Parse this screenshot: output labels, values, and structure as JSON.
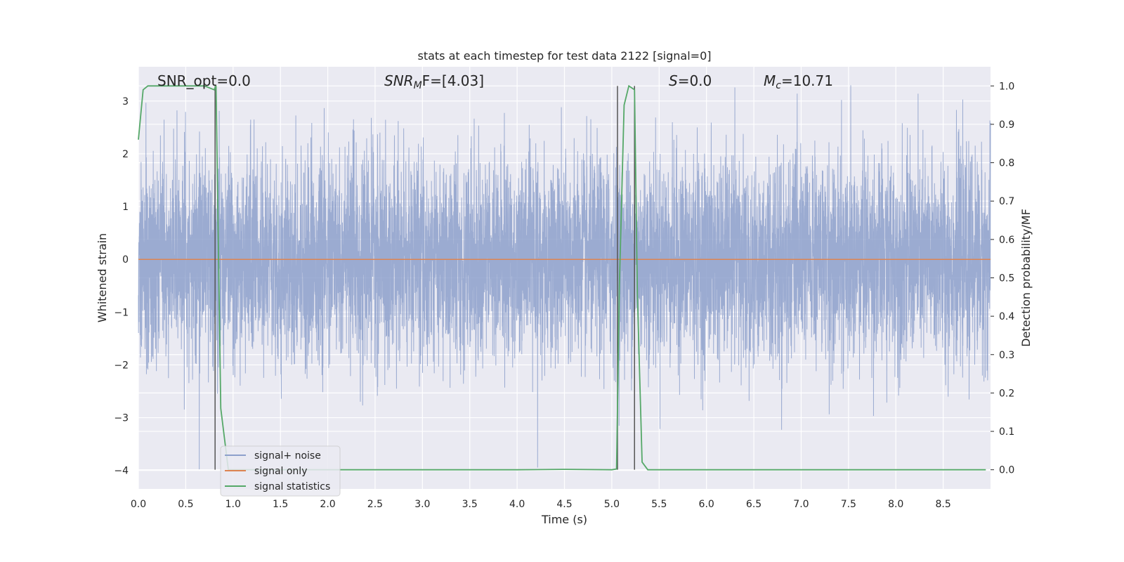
{
  "chart_data": {
    "type": "line",
    "title": "stats at each timestep for test data 2122 [signal=0]",
    "xlabel": "Time (s)",
    "ylabel": "Whitened strain",
    "y2label": "Detection probability/MF",
    "xlim": [
      0,
      9.0
    ],
    "ylim": [
      -4.35,
      3.65
    ],
    "y2lim": [
      -0.05,
      1.05
    ],
    "x_ticks": [
      "0.0",
      "0.5",
      "1.0",
      "1.5",
      "2.0",
      "2.5",
      "3.0",
      "3.5",
      "4.0",
      "4.5",
      "5.0",
      "5.5",
      "6.0",
      "6.5",
      "7.0",
      "7.5",
      "8.0",
      "8.5"
    ],
    "y_ticks": [
      "3",
      "2",
      "1",
      "0",
      "−1",
      "−2",
      "−3",
      "−4"
    ],
    "y2_ticks": [
      "1.0",
      "0.9",
      "0.8",
      "0.7",
      "0.6",
      "0.5",
      "0.4",
      "0.3",
      "0.2",
      "0.1",
      "0.0"
    ],
    "grid": true,
    "legend_position": "lower-left",
    "annotations": {
      "snr_opt": "SNR_opt=0.0",
      "snr_mf_main": "SNR",
      "snr_mf_sub": "M",
      "snr_mf_rest": "F=[4.03]",
      "s_italic": "S",
      "s_rest": "=0.0",
      "mc_italic": "M",
      "mc_sub": "c",
      "mc_rest": "=10.71"
    },
    "series": [
      {
        "name": "signal+ noise",
        "color": "#8da0cb",
        "noise_amplitude_range": [
          -4.0,
          3.3
        ],
        "description_values": "whitened noise strain, approximately Gaussian around 0"
      },
      {
        "name": "signal only",
        "color": "#dd8452",
        "x": [
          0,
          9.0
        ],
        "y": [
          0,
          0
        ]
      },
      {
        "name": "signal statistics",
        "color": "#55a868",
        "axis": "y2",
        "x": [
          0.0,
          0.05,
          0.1,
          0.2,
          0.3,
          0.5,
          0.7,
          0.8,
          0.82,
          0.87,
          0.95,
          1.0,
          1.5,
          2.0,
          3.0,
          4.0,
          4.5,
          5.0,
          5.05,
          5.08,
          5.13,
          5.18,
          5.24,
          5.27,
          5.32,
          5.38,
          5.5,
          6.0,
          7.0,
          8.0,
          8.95
        ],
        "y": [
          0.86,
          0.99,
          1.0,
          1.0,
          1.0,
          1.0,
          1.0,
          0.99,
          1.0,
          0.16,
          0.0,
          0.0,
          0.0,
          0.0,
          0.0,
          0.0,
          0.001,
          0.0,
          0.002,
          0.48,
          0.95,
          1.0,
          0.99,
          0.46,
          0.02,
          0.0,
          0.0,
          0.0,
          0.0,
          0.0,
          0.0
        ]
      }
    ],
    "vertical_lines": [
      0.81,
      5.06,
      5.24
    ]
  }
}
